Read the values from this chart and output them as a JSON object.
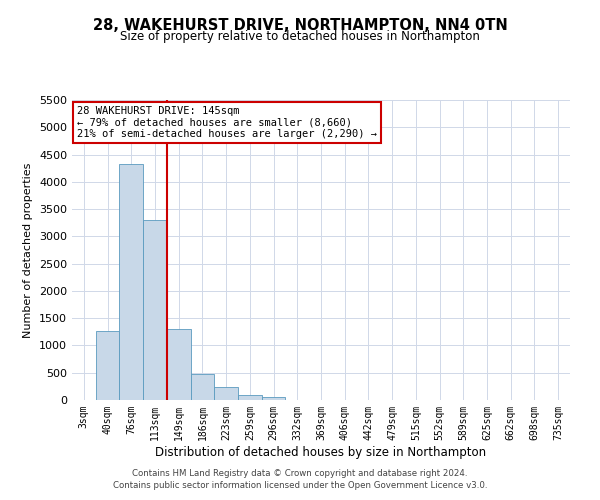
{
  "title": "28, WAKEHURST DRIVE, NORTHAMPTON, NN4 0TN",
  "subtitle": "Size of property relative to detached houses in Northampton",
  "xlabel": "Distribution of detached houses by size in Northampton",
  "ylabel": "Number of detached properties",
  "bar_labels": [
    "3sqm",
    "40sqm",
    "76sqm",
    "113sqm",
    "149sqm",
    "186sqm",
    "223sqm",
    "259sqm",
    "296sqm",
    "332sqm",
    "369sqm",
    "406sqm",
    "442sqm",
    "479sqm",
    "515sqm",
    "552sqm",
    "589sqm",
    "625sqm",
    "662sqm",
    "698sqm",
    "735sqm"
  ],
  "bar_values": [
    0,
    1270,
    4320,
    3300,
    1300,
    480,
    230,
    90,
    50,
    0,
    0,
    0,
    0,
    0,
    0,
    0,
    0,
    0,
    0,
    0,
    0
  ],
  "bar_color": "#c8d8e8",
  "bar_edge_color": "#5a9abf",
  "ylim": [
    0,
    5500
  ],
  "yticks": [
    0,
    500,
    1000,
    1500,
    2000,
    2500,
    3000,
    3500,
    4000,
    4500,
    5000,
    5500
  ],
  "vline_color": "#cc0000",
  "vline_x_index": 3.5,
  "annotation_text": "28 WAKEHURST DRIVE: 145sqm\n← 79% of detached houses are smaller (8,660)\n21% of semi-detached houses are larger (2,290) →",
  "annotation_box_color": "#ffffff",
  "annotation_border_color": "#cc0000",
  "footer_line1": "Contains HM Land Registry data © Crown copyright and database right 2024.",
  "footer_line2": "Contains public sector information licensed under the Open Government Licence v3.0.",
  "background_color": "#ffffff",
  "grid_color": "#d0d8e8"
}
